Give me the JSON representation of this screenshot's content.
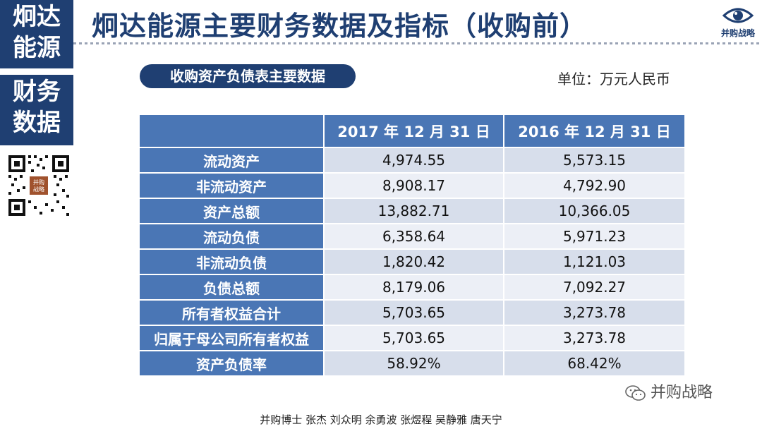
{
  "sidebar": {
    "company": [
      "炯达",
      "能源"
    ],
    "section": [
      "财务",
      "数据"
    ]
  },
  "header": {
    "title": "炯达能源主要财务数据及指标（收购前）",
    "logo_text": "并购战略"
  },
  "section": {
    "pill": "收购资产负债表主要数据",
    "unit": "单位：万元人民币"
  },
  "table": {
    "columns": [
      "",
      "2017 年 12 月 31 日",
      "2016 年 12 月 31 日"
    ],
    "rows": [
      {
        "label": "流动资产",
        "v2017": "4,974.55",
        "v2016": "5,573.15"
      },
      {
        "label": "非流动资产",
        "v2017": "8,908.17",
        "v2016": "4,792.90"
      },
      {
        "label": "资产总额",
        "v2017": "13,882.71",
        "v2016": "10,366.05"
      },
      {
        "label": "流动负债",
        "v2017": "6,358.64",
        "v2016": "5,971.23"
      },
      {
        "label": "非流动负债",
        "v2017": "1,820.42",
        "v2016": "1,121.03"
      },
      {
        "label": "负债总额",
        "v2017": "8,179.06",
        "v2016": "7,092.27"
      },
      {
        "label": "所有者权益合计",
        "v2017": "5,703.65",
        "v2016": "3,273.78"
      },
      {
        "label": "归属于母公司所有者权益",
        "v2017": "5,703.65",
        "v2016": "3,273.78"
      },
      {
        "label": "资产负债率",
        "v2017": "58.92%",
        "v2016": "68.42%"
      }
    ]
  },
  "watermark": "并购战略",
  "footer": "并购博士 张杰 刘众明 余勇波 张煜程 吴静雅 唐天宁",
  "colors": {
    "navy": "#1f3f72",
    "header_blue": "#4a76b5",
    "cell_light": "#d7deeb"
  },
  "icons": {
    "logo": "eye-icon",
    "qr": "qr-code-icon",
    "wechat": "wechat-icon"
  }
}
